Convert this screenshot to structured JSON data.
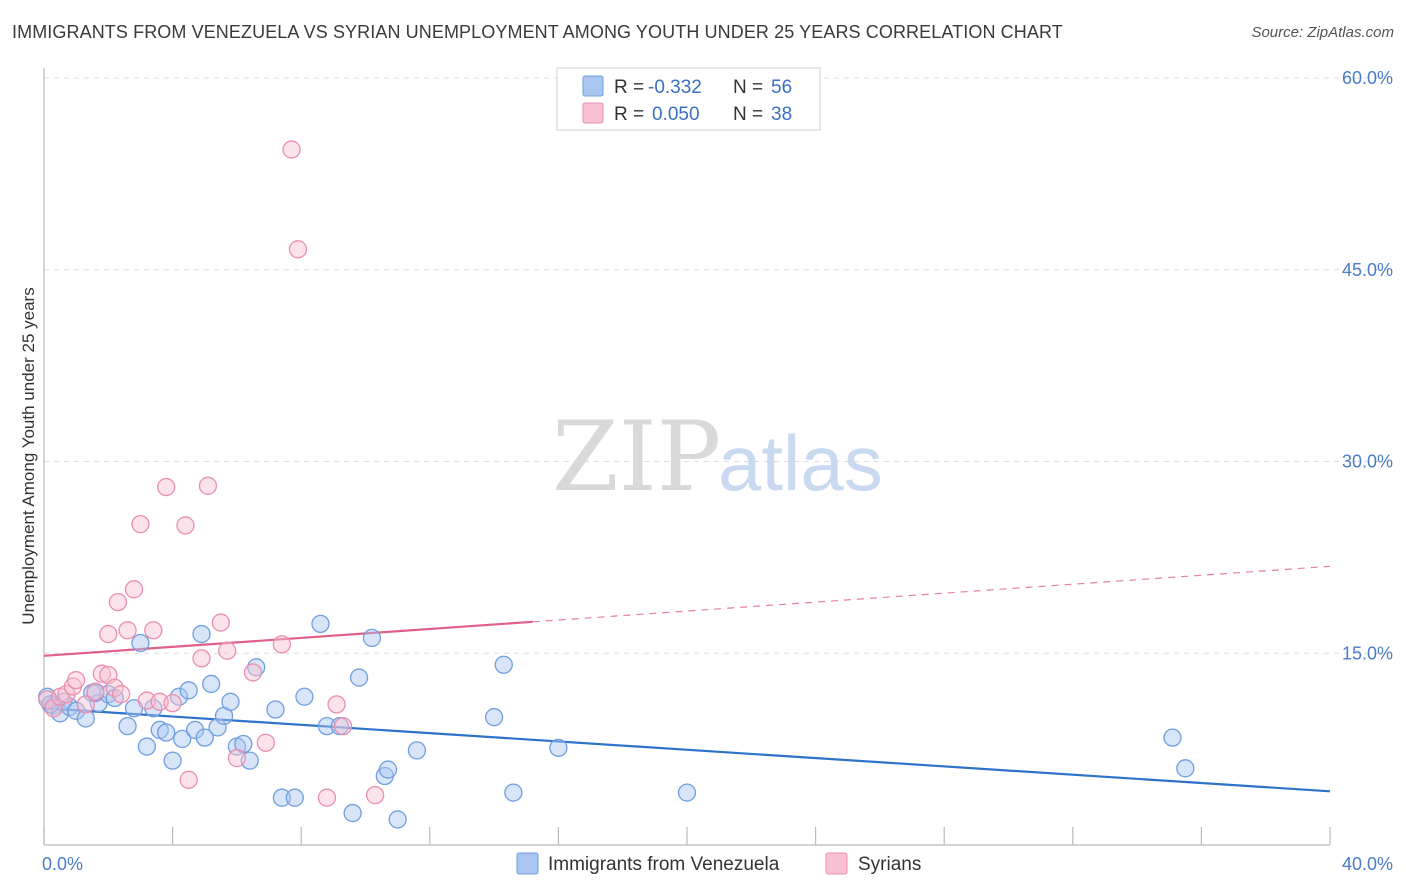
{
  "title": "IMMIGRANTS FROM VENEZUELA VS SYRIAN UNEMPLOYMENT AMONG YOUTH UNDER 25 YEARS CORRELATION CHART",
  "source": "Source: ZipAtlas.com",
  "watermark": {
    "zip": "ZIP",
    "atlas": "atlas"
  },
  "legend_top": {
    "rows": [
      {
        "r_label": "R =",
        "r_value": "-0.332",
        "n_label": "N =",
        "n_value": "56",
        "fill": "#a8c6f0",
        "stroke": "#6f9fe0"
      },
      {
        "r_label": "R =",
        "r_value": "0.050",
        "n_label": "N =",
        "n_value": "38",
        "fill": "#f8c0d2",
        "stroke": "#ea8fae"
      }
    ]
  },
  "chart_data": {
    "type": "scatter",
    "title": "IMMIGRANTS FROM VENEZUELA VS SYRIAN UNEMPLOYMENT AMONG YOUTH UNDER 25 YEARS CORRELATION CHART",
    "xlabel": "",
    "ylabel": "Unemployment Among Youth under 25 years",
    "xlim": [
      0,
      40
    ],
    "ylim": [
      0,
      60
    ],
    "x_tick_labels": [
      {
        "value": 0,
        "label": "0.0%"
      },
      {
        "value": 40,
        "label": "40.0%"
      }
    ],
    "y_tick_labels": [
      {
        "value": 15,
        "label": "15.0%"
      },
      {
        "value": 30,
        "label": "30.0%"
      },
      {
        "value": 45,
        "label": "45.0%"
      },
      {
        "value": 60,
        "label": "60.0%"
      }
    ],
    "x_minor_ticks": [
      0,
      4,
      8,
      12,
      16,
      20,
      24,
      28,
      32,
      36,
      40
    ],
    "series": [
      {
        "name": "Immigrants from Venezuela",
        "color": "#6f9fe0",
        "fill": "#a8c6f0",
        "line_color": "#2f72cc",
        "trend": {
          "x": [
            0,
            40
          ],
          "y": [
            10.7,
            4.2
          ],
          "dashed_from": null
        },
        "points": [
          [
            0.1,
            11.6
          ],
          [
            0.3,
            10.9
          ],
          [
            0.5,
            10.3
          ],
          [
            0.6,
            11.2
          ],
          [
            0.8,
            10.8
          ],
          [
            1.0,
            10.5
          ],
          [
            1.3,
            9.9
          ],
          [
            1.5,
            11.9
          ],
          [
            1.7,
            11.1
          ],
          [
            2.0,
            11.8
          ],
          [
            2.2,
            11.5
          ],
          [
            2.6,
            9.3
          ],
          [
            2.8,
            10.7
          ],
          [
            3.0,
            15.8
          ],
          [
            3.2,
            7.7
          ],
          [
            3.4,
            10.7
          ],
          [
            3.6,
            9.0
          ],
          [
            3.8,
            8.8
          ],
          [
            4.0,
            6.6
          ],
          [
            4.2,
            11.6
          ],
          [
            4.3,
            8.3
          ],
          [
            4.5,
            12.1
          ],
          [
            4.7,
            9.0
          ],
          [
            4.9,
            16.5
          ],
          [
            5.0,
            8.4
          ],
          [
            5.2,
            12.6
          ],
          [
            5.4,
            9.2
          ],
          [
            5.6,
            10.1
          ],
          [
            5.8,
            11.2
          ],
          [
            6.0,
            7.7
          ],
          [
            6.2,
            7.9
          ],
          [
            6.4,
            6.6
          ],
          [
            6.6,
            13.9
          ],
          [
            7.2,
            10.6
          ],
          [
            7.4,
            3.7
          ],
          [
            7.8,
            3.7
          ],
          [
            8.1,
            11.6
          ],
          [
            8.6,
            17.3
          ],
          [
            8.8,
            9.3
          ],
          [
            9.2,
            9.3
          ],
          [
            9.6,
            2.5
          ],
          [
            9.8,
            13.1
          ],
          [
            10.2,
            16.2
          ],
          [
            10.6,
            5.4
          ],
          [
            10.7,
            5.9
          ],
          [
            11.0,
            2.0
          ],
          [
            11.6,
            7.4
          ],
          [
            14.0,
            10.0
          ],
          [
            14.3,
            14.1
          ],
          [
            14.6,
            4.1
          ],
          [
            16.0,
            7.6
          ],
          [
            20.0,
            4.1
          ],
          [
            35.1,
            8.4
          ],
          [
            35.5,
            6.0
          ],
          [
            1.6,
            11.9
          ],
          [
            0.2,
            11.0
          ]
        ]
      },
      {
        "name": "Syrians",
        "color": "#ea8fae",
        "fill": "#f8c0d2",
        "line_color": "#e0608a",
        "trend": {
          "x": [
            0,
            40
          ],
          "y": [
            14.8,
            21.8
          ],
          "dashed_from": 15.2
        },
        "points": [
          [
            0.1,
            11.4
          ],
          [
            0.3,
            10.7
          ],
          [
            0.5,
            11.6
          ],
          [
            0.7,
            11.8
          ],
          [
            0.9,
            12.4
          ],
          [
            1.0,
            12.9
          ],
          [
            1.3,
            11.0
          ],
          [
            1.6,
            12.0
          ],
          [
            1.8,
            13.4
          ],
          [
            2.0,
            13.3
          ],
          [
            2.2,
            12.3
          ],
          [
            2.4,
            11.8
          ],
          [
            2.0,
            16.5
          ],
          [
            2.3,
            19.0
          ],
          [
            2.6,
            16.8
          ],
          [
            2.8,
            20.0
          ],
          [
            3.0,
            25.1
          ],
          [
            3.2,
            11.3
          ],
          [
            3.4,
            16.8
          ],
          [
            3.6,
            11.2
          ],
          [
            3.8,
            28.0
          ],
          [
            4.0,
            11.1
          ],
          [
            4.4,
            25.0
          ],
          [
            4.5,
            5.1
          ],
          [
            4.9,
            14.6
          ],
          [
            5.1,
            28.1
          ],
          [
            5.5,
            17.4
          ],
          [
            5.7,
            15.2
          ],
          [
            6.0,
            6.8
          ],
          [
            6.5,
            13.5
          ],
          [
            6.9,
            8.0
          ],
          [
            7.4,
            15.7
          ],
          [
            7.7,
            54.4
          ],
          [
            7.9,
            46.6
          ],
          [
            8.8,
            3.7
          ],
          [
            9.1,
            11.0
          ],
          [
            9.3,
            9.3
          ],
          [
            10.3,
            3.9
          ]
        ]
      }
    ],
    "legend": "bottom-center"
  }
}
